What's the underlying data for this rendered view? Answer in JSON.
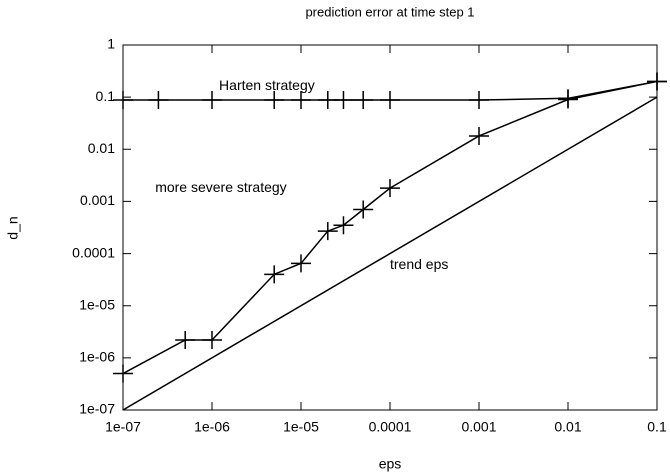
{
  "chart_data": {
    "type": "line",
    "title": "prediction error at time step 1",
    "x_label": "eps",
    "y_label": "d_n",
    "log_x": true,
    "log_y": true,
    "xlim": [
      1e-07,
      0.1
    ],
    "ylim": [
      1e-07,
      1
    ],
    "xticks": [
      {
        "value": 1e-07,
        "label": "1e-07"
      },
      {
        "value": 1e-06,
        "label": "1e-06"
      },
      {
        "value": 1e-05,
        "label": "1e-05"
      },
      0.0001,
      0.001,
      0.01,
      0.1
    ],
    "yticks": [
      {
        "value": 1e-07,
        "label": "1e-07"
      },
      {
        "value": 1e-06,
        "label": "1e-06"
      },
      {
        "value": 1e-05,
        "label": "1e-05"
      },
      0.0001,
      0.001,
      0.01,
      0.1,
      1
    ],
    "series": [
      {
        "color": "#000000",
        "markers": true,
        "x": [
          1e-07,
          2.5e-07,
          1e-06,
          5e-06,
          1e-05,
          2e-05,
          3e-05,
          5e-05,
          0.0001,
          0.001,
          0.01,
          0.1
        ],
        "values": [
          0.088,
          0.088,
          0.088,
          0.088,
          0.088,
          0.088,
          0.088,
          0.088,
          0.088,
          0.088,
          0.095,
          0.2
        ]
      },
      {
        "color": "#000000",
        "markers": true,
        "x": [
          1e-07,
          5e-07,
          1e-06,
          5e-06,
          1e-05,
          2e-05,
          3e-05,
          5e-05,
          0.0001,
          0.001,
          0.01,
          0.1
        ],
        "values": [
          5e-07,
          2.2e-06,
          2.2e-06,
          4e-05,
          6.5e-05,
          0.00027,
          0.00035,
          0.0007,
          0.0018,
          0.018,
          0.09,
          0.2
        ]
      },
      {
        "color": "#000000",
        "markers": false,
        "x": [
          1e-07,
          0.1
        ],
        "values": [
          1e-07,
          0.1
        ]
      }
    ],
    "annotations": [
      {
        "text": "Harten strategy",
        "x": 1.2e-06,
        "y": 0.16
      },
      {
        "text": "more severe strategy",
        "x": 2.3e-07,
        "y": 0.0018
      },
      {
        "text": "trend eps",
        "x": 0.0001,
        "y": 6e-05
      }
    ]
  }
}
